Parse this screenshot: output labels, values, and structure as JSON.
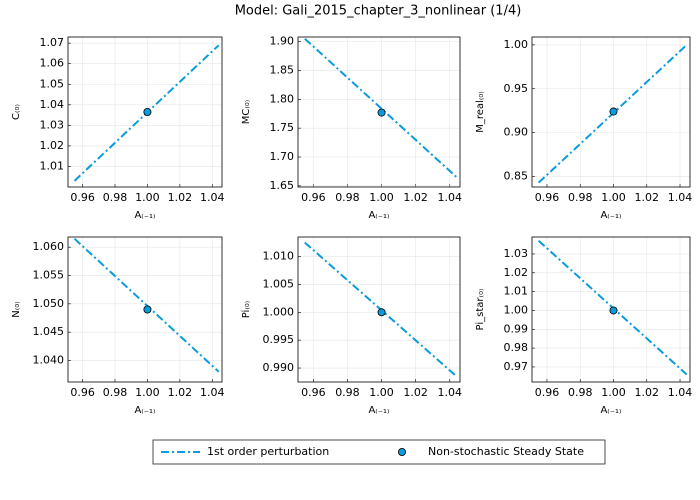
{
  "title": "Model: Gali_2015_chapter_3_nonlinear  (1/4)",
  "legend": [
    {
      "name": "1st order perturbation",
      "color": "#0a9bde",
      "style": "dashdot"
    },
    {
      "name": "Non-stochastic Steady State",
      "color": "#0a9bde",
      "style": "marker"
    }
  ],
  "chart_data": [
    {
      "type": "line",
      "xlabel": "A₍₋₁₎",
      "ylabel": "C₍₀₎",
      "xlim": [
        0.951,
        1.046
      ],
      "xticks": [
        0.96,
        0.98,
        {
          "value": 1,
          "label": "1.00"
        },
        1.02,
        1.04
      ],
      "ylim": [
        1.0,
        1.073
      ],
      "yticks": [
        1.01,
        1.02,
        1.03,
        1.04,
        1.05,
        1.06,
        1.07
      ],
      "series": [
        {
          "x": [
            0.955,
            1.044
          ],
          "values": [
            1.003,
            1.069
          ],
          "color": "#0a9bde",
          "style": "dashdot"
        },
        {
          "x": [
            1
          ],
          "values": [
            1.0365
          ],
          "color": "#0a9bde",
          "style": "marker"
        }
      ]
    },
    {
      "type": "line",
      "xlabel": "A₍₋₁₎",
      "ylabel": "MC₍₀₎",
      "xlim": [
        0.951,
        1.046
      ],
      "xticks": [
        0.96,
        0.98,
        {
          "value": 1,
          "label": "1.00"
        },
        1.02,
        1.04
      ],
      "ylim": [
        1.648,
        1.908
      ],
      "yticks": [
        1.65,
        {
          "value": 1.7,
          "label": "1.70"
        },
        1.75,
        {
          "value": 1.8,
          "label": "1.80"
        },
        1.85,
        {
          "value": 1.9,
          "label": "1.90"
        }
      ],
      "series": [
        {
          "x": [
            0.955,
            1.044
          ],
          "values": [
            1.905,
            1.665
          ],
          "color": "#0a9bde",
          "style": "dashdot"
        },
        {
          "x": [
            1
          ],
          "values": [
            1.777
          ],
          "color": "#0a9bde",
          "style": "marker"
        }
      ]
    },
    {
      "type": "line",
      "xlabel": "A₍₋₁₎",
      "ylabel": "M_real₍₀₎",
      "xlim": [
        0.951,
        1.046
      ],
      "xticks": [
        0.96,
        0.98,
        {
          "value": 1,
          "label": "1.00"
        },
        1.02,
        1.04
      ],
      "ylim": [
        0.838,
        1.009
      ],
      "yticks": [
        0.85,
        {
          "value": 0.9,
          "label": "0.90"
        },
        0.95,
        {
          "value": 1,
          "label": "1.00"
        }
      ],
      "series": [
        {
          "x": [
            0.955,
            1.044
          ],
          "values": [
            0.843,
            1.0
          ],
          "color": "#0a9bde",
          "style": "dashdot"
        },
        {
          "x": [
            1
          ],
          "values": [
            0.924
          ],
          "color": "#0a9bde",
          "style": "marker"
        }
      ]
    },
    {
      "type": "line",
      "xlabel": "A₍₋₁₎",
      "ylabel": "N₍₀₎",
      "xlim": [
        0.951,
        1.046
      ],
      "xticks": [
        0.96,
        0.98,
        {
          "value": 1,
          "label": "1.00"
        },
        1.02,
        1.04
      ],
      "ylim": [
        1.0362,
        1.0618
      ],
      "yticks": [
        {
          "value": 1.04,
          "label": "1.040"
        },
        1.045,
        {
          "value": 1.05,
          "label": "1.050"
        },
        1.055,
        {
          "value": 1.06,
          "label": "1.060"
        }
      ],
      "series": [
        {
          "x": [
            0.955,
            1.044
          ],
          "values": [
            1.0615,
            1.038
          ],
          "color": "#0a9bde",
          "style": "dashdot"
        },
        {
          "x": [
            1
          ],
          "values": [
            1.049
          ],
          "color": "#0a9bde",
          "style": "marker"
        }
      ]
    },
    {
      "type": "line",
      "xlabel": "A₍₋₁₎",
      "ylabel": "Pi₍₀₎",
      "xlim": [
        0.951,
        1.046
      ],
      "xticks": [
        0.96,
        0.98,
        {
          "value": 1,
          "label": "1.00"
        },
        1.02,
        1.04
      ],
      "ylim": [
        0.9875,
        1.0135
      ],
      "yticks": [
        {
          "value": 0.99,
          "label": "0.990"
        },
        0.995,
        {
          "value": 1,
          "label": "1.000"
        },
        1.005,
        {
          "value": 1.01,
          "label": "1.010"
        }
      ],
      "series": [
        {
          "x": [
            0.955,
            1.044
          ],
          "values": [
            1.0125,
            0.9885
          ],
          "color": "#0a9bde",
          "style": "dashdot"
        },
        {
          "x": [
            1
          ],
          "values": [
            1.0
          ],
          "color": "#0a9bde",
          "style": "marker"
        }
      ]
    },
    {
      "type": "line",
      "xlabel": "A₍₋₁₎",
      "ylabel": "Pi_star₍₀₎",
      "xlim": [
        0.951,
        1.046
      ],
      "xticks": [
        0.96,
        0.98,
        {
          "value": 1,
          "label": "1.00"
        },
        1.02,
        1.04
      ],
      "ylim": [
        0.962,
        1.039
      ],
      "yticks": [
        0.97,
        0.98,
        0.99,
        {
          "value": 1,
          "label": "1.00"
        },
        1.01,
        1.02,
        1.03
      ],
      "series": [
        {
          "x": [
            0.955,
            1.044
          ],
          "values": [
            1.037,
            0.966
          ],
          "color": "#0a9bde",
          "style": "dashdot"
        },
        {
          "x": [
            1
          ],
          "values": [
            1.0
          ],
          "color": "#0a9bde",
          "style": "marker"
        }
      ]
    }
  ]
}
